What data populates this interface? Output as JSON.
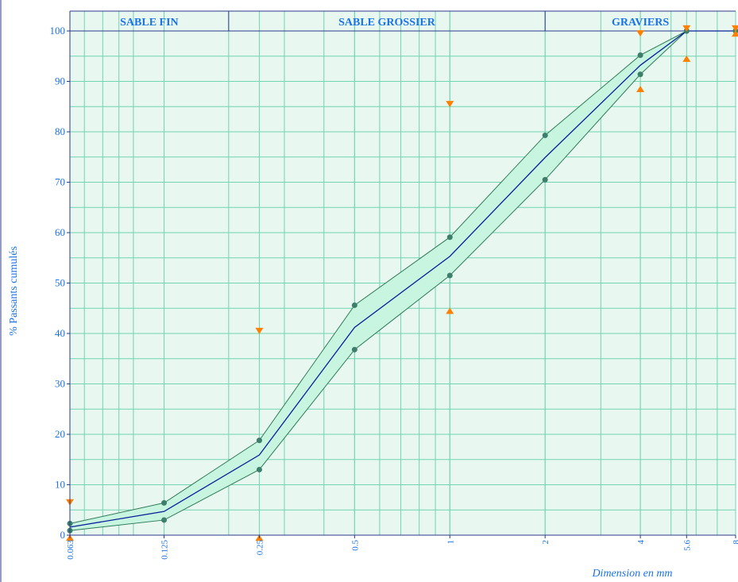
{
  "chart_data": {
    "type": "line",
    "xscale": "log",
    "xlabel": "Dimension en mm",
    "ylabel": "% Passants cumulés",
    "xlim": [
      0.063,
      8
    ],
    "ylim": [
      0,
      100
    ],
    "grid": true,
    "bands": [
      {
        "label": "SABLE FIN",
        "from": 0.063,
        "to": 0.2
      },
      {
        "label": "SABLE GROSSIER",
        "from": 0.2,
        "to": 2
      },
      {
        "label": "GRAVIERS",
        "from": 2,
        "to": 8
      }
    ],
    "xticks": [
      {
        "value": 0.063,
        "label": "0.063"
      },
      {
        "value": 0.125,
        "label": "0.125"
      },
      {
        "value": 0.25,
        "label": "0.25"
      },
      {
        "value": 0.5,
        "label": "0.5"
      },
      {
        "value": 1,
        "label": "1"
      },
      {
        "value": 2,
        "label": "2"
      },
      {
        "value": 4,
        "label": "4"
      },
      {
        "value": 5.6,
        "label": "5.6"
      },
      {
        "value": 8,
        "label": "8"
      }
    ],
    "yticks": [
      0,
      10,
      20,
      30,
      40,
      50,
      60,
      70,
      80,
      90,
      100
    ],
    "x": [
      0.063,
      0.125,
      0.25,
      0.5,
      1,
      2,
      4,
      5.6,
      8
    ],
    "series": [
      {
        "role": "upper",
        "values": [
          2.3,
          6.4,
          18.8,
          45.6,
          59.1,
          79.3,
          95.2,
          100,
          100
        ]
      },
      {
        "role": "middle",
        "values": [
          1.6,
          4.7,
          15.9,
          41.2,
          55.3,
          74.9,
          93.2,
          100,
          100
        ]
      },
      {
        "role": "lower",
        "values": [
          0.9,
          3.0,
          13.0,
          36.8,
          51.5,
          70.5,
          91.4,
          100,
          100
        ]
      }
    ],
    "markers_down": [
      {
        "x": 0.063,
        "y": 6.5
      },
      {
        "x": 0.25,
        "y": 40.5
      },
      {
        "x": 1,
        "y": 85.5
      },
      {
        "x": 4,
        "y": 99.5
      },
      {
        "x": 5.6,
        "y": 100.5
      },
      {
        "x": 8,
        "y": 100.5
      }
    ],
    "markers_up": [
      {
        "x": 0.063,
        "y": -0.5
      },
      {
        "x": 0.25,
        "y": -0.5
      },
      {
        "x": 1,
        "y": 44.5
      },
      {
        "x": 4,
        "y": 88.5
      },
      {
        "x": 5.6,
        "y": 94.5
      },
      {
        "x": 8,
        "y": 99.5
      }
    ],
    "colors": {
      "plot_bg": "#e8f7ef",
      "band_bg": "#e8f7ef",
      "grid": "#6fd6b0",
      "frame": "#2a3a8c",
      "text": "#1a73e8",
      "band_text": "#1a73e8",
      "envelope_fill": "#c8f5df",
      "envelope_line": "#2f7a5a",
      "median_line": "#0a1f9c",
      "dot": "#3c7f6a",
      "marker": "#ff8000"
    }
  }
}
